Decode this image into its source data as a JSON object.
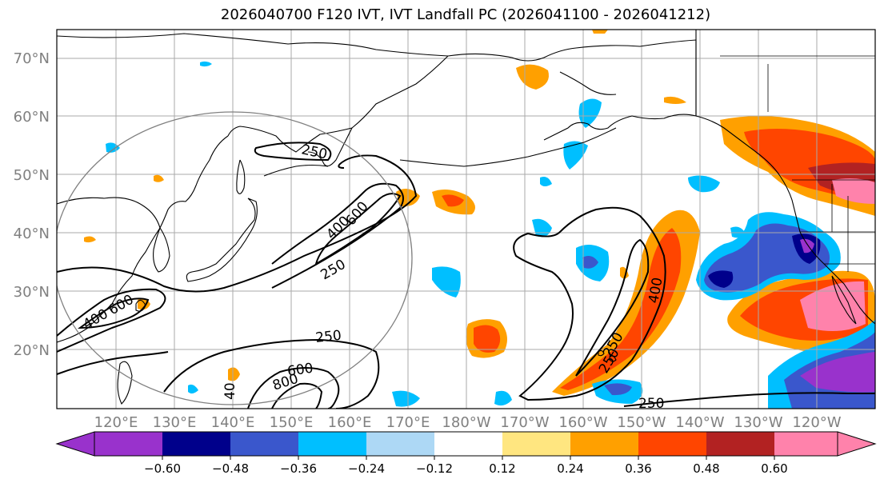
{
  "title": "2026040700 F120 IVT, IVT Landfall PC (2026041100 - 2026041212)",
  "map": {
    "lat_labels": [
      "70°N",
      "60°N",
      "50°N",
      "40°N",
      "30°N",
      "20°N"
    ],
    "lon_labels": [
      "120°E",
      "130°E",
      "140°E",
      "150°E",
      "160°E",
      "170°E",
      "180°W",
      "170°W",
      "160°W",
      "150°W",
      "140°W",
      "130°W",
      "120°W"
    ],
    "contour_labels": [
      "250",
      "250",
      "400",
      "600",
      "250",
      "400",
      "600",
      "250",
      "600",
      "800",
      "40",
      "400",
      "250",
      "250"
    ],
    "colors": {
      "neg_0": "#9932cc",
      "neg_1": "#00008b",
      "neg_2": "#3a57cc",
      "neg_3": "#00bfff",
      "neg_4": "#add8f5",
      "pos_1": "#ffe680",
      "pos_2": "#ffa000",
      "pos_3": "#ff4500",
      "pos_4": "#b22222",
      "pos_5": "#ff82ab",
      "grid": "#aaaaaa",
      "coast": "#000000"
    }
  },
  "colorbar": {
    "tick_labels": [
      "−0.60",
      "−0.48",
      "−0.36",
      "−0.24",
      "−0.12",
      "0.12",
      "0.24",
      "0.36",
      "0.48",
      "0.60"
    ],
    "segment_colors": [
      "#9932cc",
      "#00008b",
      "#3a57cc",
      "#00bfff",
      "#add8f5",
      "#ffffff",
      "#ffe680",
      "#ffa000",
      "#ff4500",
      "#b22222",
      "#ff82ab"
    ]
  }
}
